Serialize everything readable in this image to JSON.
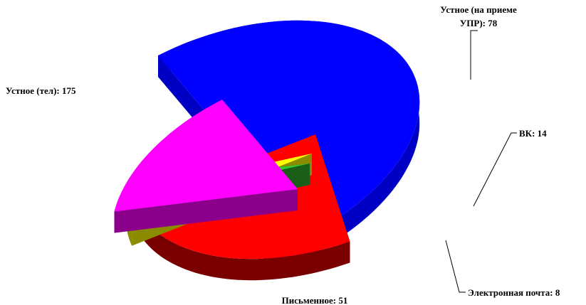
{
  "chart_data": {
    "type": "pie",
    "style": "3d-exploded",
    "slices": [
      {
        "name": "Устное (тел)",
        "value": 175,
        "label": "Устное (тел): 175",
        "color": "#0000ff",
        "dark": "#0000c4"
      },
      {
        "name": "Устное (на приеме УПР)",
        "value": 78,
        "label_lines": [
          "Устное (на приеме",
          "УПР): 78"
        ],
        "color": "#ff0000",
        "dark": "#7a0000"
      },
      {
        "name": "ВК",
        "value": 14,
        "label": "ВК: 14",
        "color": "#ffff00",
        "dark": "#8b8b00"
      },
      {
        "name": "Электронная почта",
        "value": 8,
        "label": "Электронная почта: 8",
        "color": "#33cc33",
        "dark": "#1a5e1a"
      },
      {
        "name": "Письменное",
        "value": 51,
        "label": "Письменное: 51",
        "color": "#ff00ff",
        "dark": "#8b008b"
      }
    ],
    "legend": "none"
  }
}
